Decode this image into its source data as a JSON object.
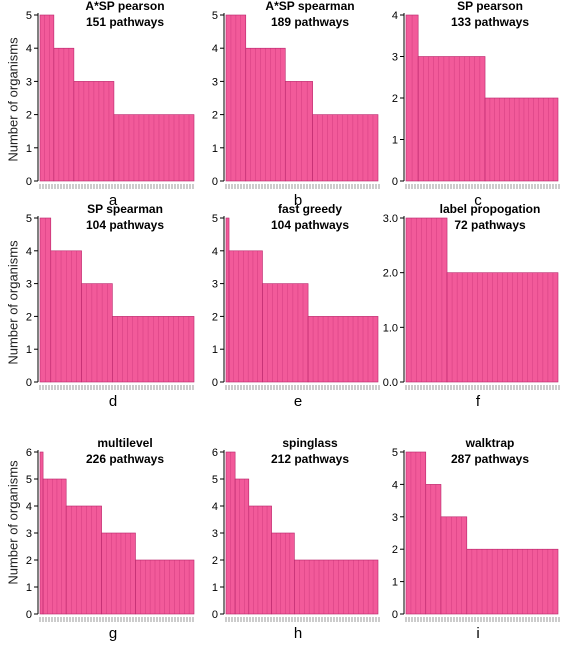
{
  "figure": {
    "ylabel": "Number of organisms",
    "bar_color": "#f25a9a",
    "bar_stroke": "#b8246a"
  },
  "chart_data": [
    {
      "type": "bar",
      "panel": "a",
      "title": "A*SP pearson",
      "subtitle": "151 pathways",
      "yticks": [
        "0",
        "1",
        "2",
        "3",
        "4",
        "5"
      ],
      "ylim": [
        0,
        5
      ],
      "levels": [
        {
          "value": 5,
          "fraction": 0.09
        },
        {
          "value": 4,
          "fraction": 0.13
        },
        {
          "value": 3,
          "fraction": 0.26
        },
        {
          "value": 2,
          "fraction": 0.52
        }
      ]
    },
    {
      "type": "bar",
      "panel": "b",
      "title": "A*SP spearman",
      "subtitle": "189 pathways",
      "yticks": [
        "0",
        "1",
        "2",
        "3",
        "4",
        "5"
      ],
      "ylim": [
        0,
        5
      ],
      "levels": [
        {
          "value": 5,
          "fraction": 0.13
        },
        {
          "value": 4,
          "fraction": 0.26
        },
        {
          "value": 3,
          "fraction": 0.18
        },
        {
          "value": 2,
          "fraction": 0.43
        }
      ]
    },
    {
      "type": "bar",
      "panel": "c",
      "title": "SP pearson",
      "subtitle": "133 pathways",
      "yticks": [
        "0",
        "1",
        "2",
        "3",
        "4"
      ],
      "ylim": [
        0,
        4
      ],
      "levels": [
        {
          "value": 4,
          "fraction": 0.08
        },
        {
          "value": 3,
          "fraction": 0.44
        },
        {
          "value": 2,
          "fraction": 0.48
        }
      ]
    },
    {
      "type": "bar",
      "panel": "d",
      "title": "SP spearman",
      "subtitle": "104 pathways",
      "yticks": [
        "0",
        "1",
        "2",
        "3",
        "4",
        "5"
      ],
      "ylim": [
        0,
        5
      ],
      "levels": [
        {
          "value": 5,
          "fraction": 0.07
        },
        {
          "value": 4,
          "fraction": 0.2
        },
        {
          "value": 3,
          "fraction": 0.2
        },
        {
          "value": 2,
          "fraction": 0.53
        }
      ]
    },
    {
      "type": "bar",
      "panel": "e",
      "title": "fast greedy",
      "subtitle": "104 pathways",
      "yticks": [
        "0",
        "1",
        "2",
        "3",
        "4",
        "5"
      ],
      "ylim": [
        0,
        5
      ],
      "levels": [
        {
          "value": 5,
          "fraction": 0.02
        },
        {
          "value": 4,
          "fraction": 0.22
        },
        {
          "value": 3,
          "fraction": 0.3
        },
        {
          "value": 2,
          "fraction": 0.46
        }
      ]
    },
    {
      "type": "bar",
      "panel": "f",
      "title": "label propogation",
      "subtitle": "72 pathways",
      "yticks": [
        "0.0",
        "1.0",
        "2.0",
        "3.0"
      ],
      "ylim": [
        0,
        3
      ],
      "levels": [
        {
          "value": 3,
          "fraction": 0.27
        },
        {
          "value": 2,
          "fraction": 0.73
        }
      ]
    },
    {
      "type": "bar",
      "panel": "g",
      "title": "multilevel",
      "subtitle": "226 pathways",
      "yticks": [
        "0",
        "1",
        "2",
        "3",
        "4",
        "5",
        "6"
      ],
      "ylim": [
        0,
        6
      ],
      "levels": [
        {
          "value": 6,
          "fraction": 0.02
        },
        {
          "value": 5,
          "fraction": 0.15
        },
        {
          "value": 4,
          "fraction": 0.23
        },
        {
          "value": 3,
          "fraction": 0.22
        },
        {
          "value": 2,
          "fraction": 0.38
        }
      ]
    },
    {
      "type": "bar",
      "panel": "h",
      "title": "spinglass",
      "subtitle": "212 pathways",
      "yticks": [
        "0",
        "1",
        "2",
        "3",
        "4",
        "5",
        "6"
      ],
      "ylim": [
        0,
        6
      ],
      "levels": [
        {
          "value": 6,
          "fraction": 0.06
        },
        {
          "value": 5,
          "fraction": 0.09
        },
        {
          "value": 4,
          "fraction": 0.15
        },
        {
          "value": 3,
          "fraction": 0.15
        },
        {
          "value": 2,
          "fraction": 0.55
        }
      ]
    },
    {
      "type": "bar",
      "panel": "i",
      "title": "walktrap",
      "subtitle": "287 pathways",
      "yticks": [
        "0",
        "1",
        "2",
        "3",
        "4",
        "5"
      ],
      "ylim": [
        0,
        5
      ],
      "levels": [
        {
          "value": 5,
          "fraction": 0.13
        },
        {
          "value": 4,
          "fraction": 0.1
        },
        {
          "value": 3,
          "fraction": 0.17
        },
        {
          "value": 2,
          "fraction": 0.6
        }
      ]
    }
  ]
}
